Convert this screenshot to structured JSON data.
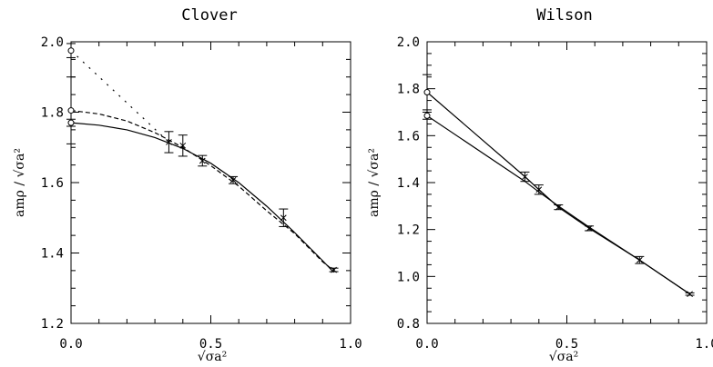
{
  "chart_data": [
    {
      "type": "line",
      "title": "Clover",
      "xlabel": "√σa²",
      "ylabel": "amρ / √σa²",
      "xlim": [
        0.0,
        1.0
      ],
      "ylim": [
        1.2,
        2.0
      ],
      "x_ticks": [
        "0.0",
        "0.5",
        "1.0"
      ],
      "y_ticks": [
        "1.2",
        "1.4",
        "1.6",
        "1.8",
        "2.0"
      ],
      "points": [
        {
          "x": 0.35,
          "y": 1.715,
          "err": 0.03
        },
        {
          "x": 0.4,
          "y": 1.705,
          "err": 0.03
        },
        {
          "x": 0.47,
          "y": 1.662,
          "err": 0.015
        },
        {
          "x": 0.58,
          "y": 1.607,
          "err": 0.01
        },
        {
          "x": 0.76,
          "y": 1.5,
          "err": 0.025
        },
        {
          "x": 0.94,
          "y": 1.352,
          "err": 0.005
        }
      ],
      "extrapolations": [
        {
          "x": 0.0,
          "y": 1.975,
          "err": 0.02
        },
        {
          "x": 0.0,
          "y": 1.805,
          "err": 0.095
        },
        {
          "x": 0.0,
          "y": 1.77,
          "err": 0.01
        }
      ],
      "fits": [
        {
          "style": "solid",
          "x": [
            0.0,
            0.1,
            0.2,
            0.3,
            0.4,
            0.5,
            0.6,
            0.7,
            0.8,
            0.9,
            0.94
          ],
          "y": [
            1.77,
            1.763,
            1.75,
            1.728,
            1.697,
            1.655,
            1.6,
            1.533,
            1.458,
            1.378,
            1.345
          ]
        },
        {
          "style": "dashed",
          "x": [
            0.0,
            0.1,
            0.2,
            0.3,
            0.4,
            0.5,
            0.6,
            0.7,
            0.8,
            0.9,
            0.94
          ],
          "y": [
            1.805,
            1.795,
            1.775,
            1.742,
            1.7,
            1.648,
            1.59,
            1.52,
            1.455,
            1.375,
            1.35
          ]
        },
        {
          "style": "dotted",
          "x": [
            0.0,
            0.35
          ],
          "y": [
            1.975,
            1.715
          ]
        }
      ]
    },
    {
      "type": "line",
      "title": "Wilson",
      "xlabel": "√σa²",
      "ylabel": "amρ / √σa²",
      "xlim": [
        0.0,
        1.0
      ],
      "ylim": [
        0.8,
        2.0
      ],
      "x_ticks": [
        "0.0",
        "0.5",
        "1.0"
      ],
      "y_ticks": [
        "0.8",
        "1.0",
        "1.2",
        "1.4",
        "1.6",
        "1.8",
        "2.0"
      ],
      "points": [
        {
          "x": 0.35,
          "y": 1.425,
          "err": 0.02
        },
        {
          "x": 0.4,
          "y": 1.37,
          "err": 0.02
        },
        {
          "x": 0.47,
          "y": 1.295,
          "err": 0.01
        },
        {
          "x": 0.58,
          "y": 1.205,
          "err": 0.01
        },
        {
          "x": 0.76,
          "y": 1.07,
          "err": 0.015
        },
        {
          "x": 0.94,
          "y": 0.925,
          "err": 0.005
        }
      ],
      "extrapolations": [
        {
          "x": 0.0,
          "y": 1.785,
          "err": 0.075
        },
        {
          "x": 0.0,
          "y": 1.685,
          "err": 0.015
        }
      ],
      "fits": [
        {
          "style": "solid",
          "x": [
            0.0,
            0.35,
            0.4,
            0.47,
            0.58,
            0.76,
            0.94
          ],
          "y": [
            1.785,
            1.425,
            1.37,
            1.295,
            1.205,
            1.07,
            0.925
          ]
        },
        {
          "style": "solid",
          "x": [
            0.0,
            0.35,
            0.4,
            0.47,
            0.58,
            0.76,
            0.94
          ],
          "y": [
            1.685,
            1.405,
            1.36,
            1.3,
            1.21,
            1.07,
            0.925
          ]
        }
      ]
    }
  ]
}
